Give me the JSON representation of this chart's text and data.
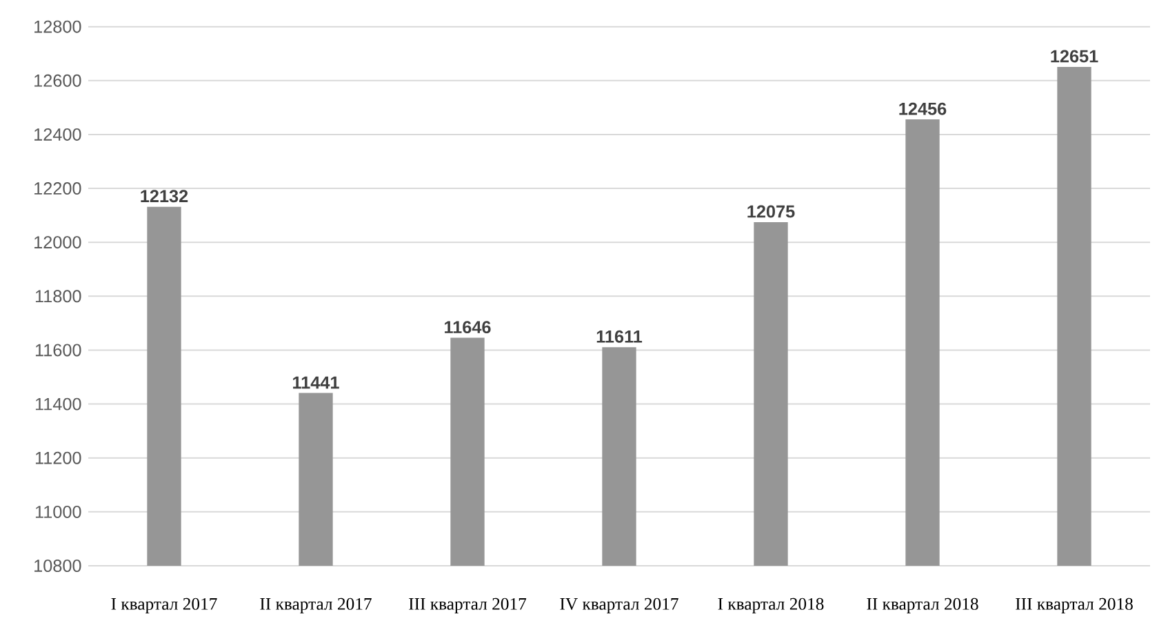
{
  "chart_data": {
    "type": "bar",
    "categories": [
      "I квартал 2017",
      "II квартал 2017",
      "III квартал 2017",
      "IV квартал 2017",
      "I квартал 2018",
      "II квартал 2018",
      "III квартал 2018"
    ],
    "values": [
      12132,
      11441,
      11646,
      11611,
      12075,
      12456,
      12651
    ],
    "color": "#969696",
    "ylim": [
      10800,
      12800
    ],
    "yticks": [
      10800,
      11000,
      11200,
      11400,
      11600,
      11800,
      12000,
      12200,
      12400,
      12600,
      12800
    ],
    "grid": "y",
    "data_labels": true
  }
}
